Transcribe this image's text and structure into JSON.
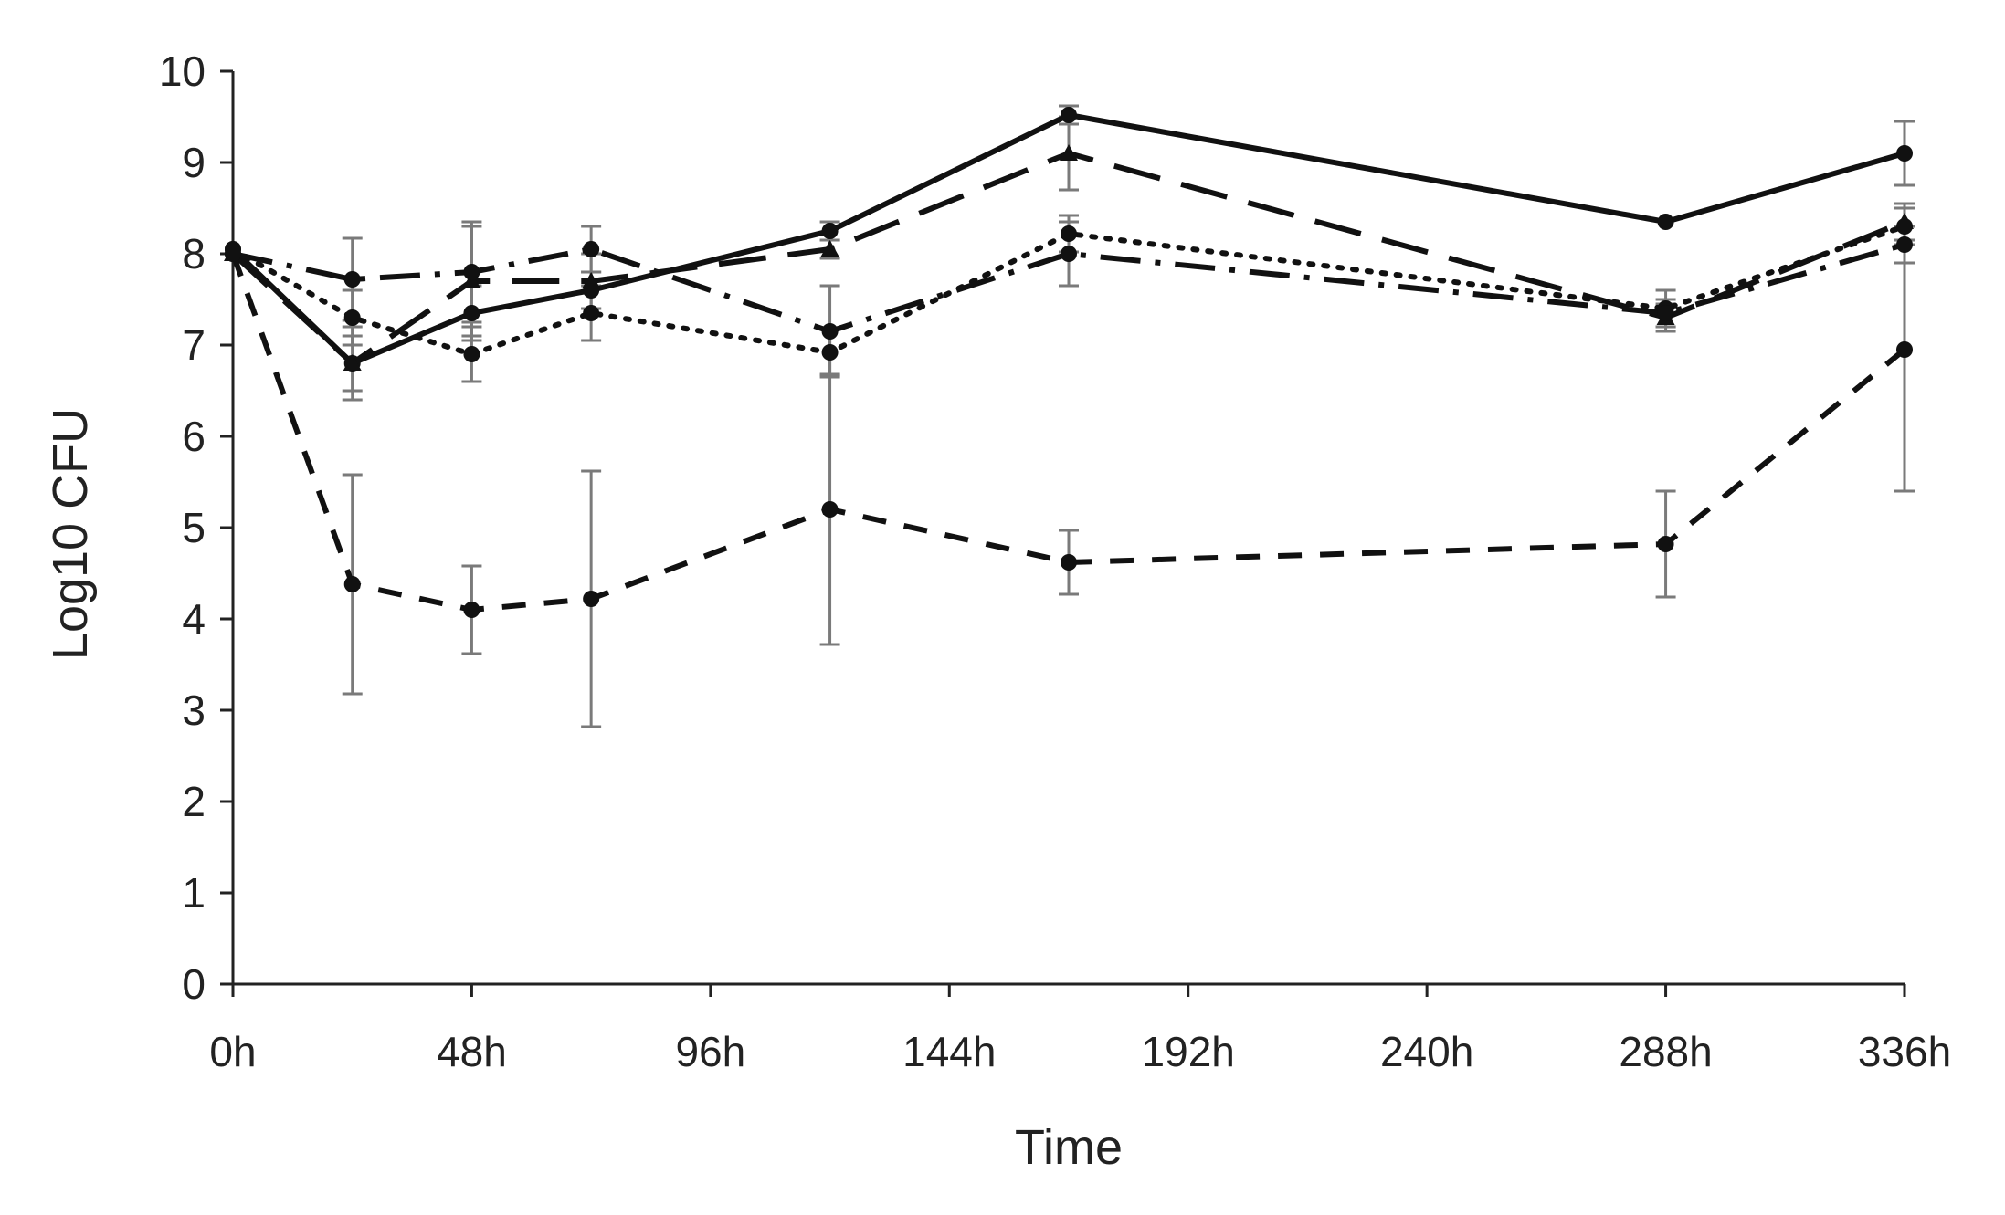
{
  "chart_data": {
    "type": "line",
    "title": "",
    "xlabel": "Time",
    "ylabel": "Log10 CFU",
    "xlim": [
      0,
      336
    ],
    "ylim": [
      0,
      10
    ],
    "x_tick_values": [
      0,
      48,
      96,
      144,
      192,
      240,
      288,
      336
    ],
    "x_tick_labels": [
      "0h",
      "48h",
      "96h",
      "144h",
      "192h",
      "240h",
      "288h",
      "336h"
    ],
    "y_ticks": [
      0,
      1,
      2,
      3,
      4,
      5,
      6,
      7,
      8,
      9,
      10
    ],
    "grid": false,
    "legend": "none",
    "x": [
      0,
      24,
      48,
      72,
      120,
      168,
      288,
      336
    ],
    "series": [
      {
        "line_style": "solid",
        "marker": "circle",
        "values": [
          8.05,
          6.8,
          7.35,
          7.6,
          8.25,
          9.52,
          8.35,
          9.1
        ],
        "errors": [
          0.05,
          0.3,
          0.3,
          0.2,
          0.1,
          0.1,
          0.05,
          0.35
        ]
      },
      {
        "line_style": "long-dash",
        "marker": "triangle",
        "values": [
          8.0,
          6.8,
          7.7,
          7.7,
          8.05,
          9.1,
          7.3,
          8.35
        ],
        "errors": [
          0.05,
          0.4,
          0.6,
          0.3,
          0.1,
          0.4,
          0.15,
          0.2
        ]
      },
      {
        "line_style": "dotted",
        "marker": "circle",
        "values": [
          8.05,
          7.3,
          6.9,
          7.35,
          6.92,
          8.22,
          7.4,
          8.3
        ],
        "errors": [
          0.05,
          0.3,
          0.3,
          0.3,
          0.25,
          0.2,
          0.2,
          0.2
        ]
      },
      {
        "line_style": "dash-dot",
        "marker": "circle",
        "values": [
          8.0,
          7.72,
          7.8,
          8.05,
          7.15,
          8.0,
          7.35,
          8.1
        ],
        "errors": [
          0.05,
          0.45,
          0.55,
          0.25,
          0.5,
          0.35,
          0.15,
          0.2
        ]
      },
      {
        "line_style": "short-dash",
        "marker": "circle",
        "values": [
          8.0,
          4.38,
          4.1,
          4.22,
          5.2,
          4.62,
          4.82,
          6.95
        ],
        "errors": [
          0.05,
          1.2,
          0.48,
          1.4,
          1.48,
          0.35,
          0.58,
          1.55
        ]
      }
    ]
  }
}
